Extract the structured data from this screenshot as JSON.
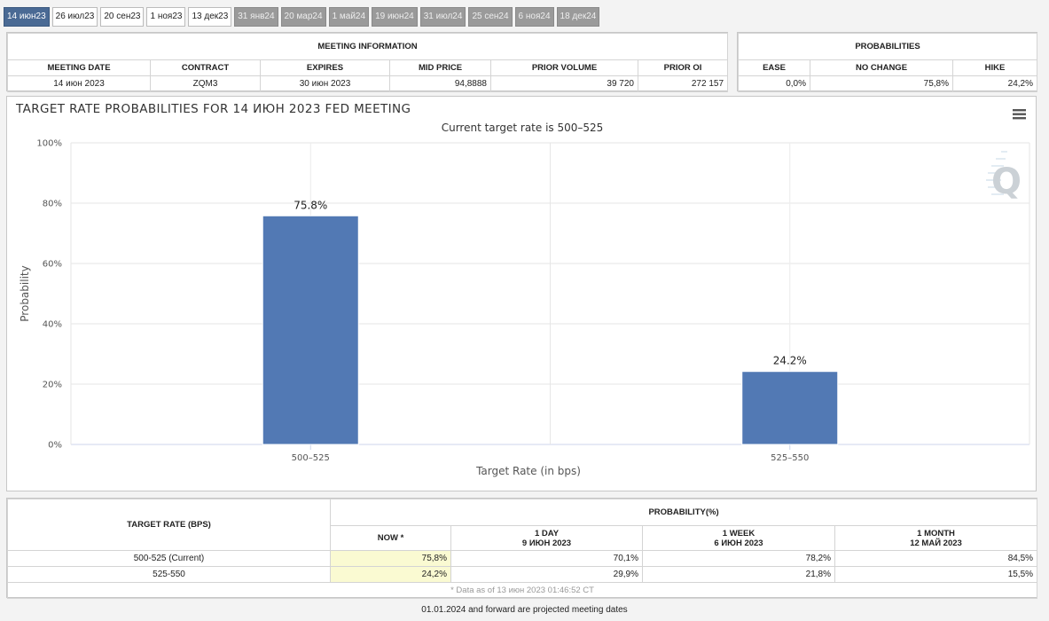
{
  "tabs": [
    {
      "label": "14 июн23",
      "state": "active"
    },
    {
      "label": "26 июл23",
      "state": "enabled"
    },
    {
      "label": "20 сен23",
      "state": "enabled"
    },
    {
      "label": "1 ноя23",
      "state": "enabled"
    },
    {
      "label": "13 дек23",
      "state": "enabled"
    },
    {
      "label": "31 янв24",
      "state": "disabled"
    },
    {
      "label": "20 мар24",
      "state": "disabled"
    },
    {
      "label": "1 май24",
      "state": "disabled"
    },
    {
      "label": "19 июн24",
      "state": "disabled"
    },
    {
      "label": "31 июл24",
      "state": "disabled"
    },
    {
      "label": "25 сен24",
      "state": "disabled"
    },
    {
      "label": "6 ноя24",
      "state": "disabled"
    },
    {
      "label": "18 дек24",
      "state": "disabled"
    }
  ],
  "meeting_info": {
    "title": "MEETING INFORMATION",
    "headers": [
      "MEETING DATE",
      "CONTRACT",
      "EXPIRES",
      "MID PRICE",
      "PRIOR VOLUME",
      "PRIOR OI"
    ],
    "values": [
      "14 июн 2023",
      "ZQM3",
      "30 июн 2023",
      "94,8888",
      "39 720",
      "272 157"
    ]
  },
  "probabilities": {
    "title": "PROBABILITIES",
    "headers": [
      "EASE",
      "NO CHANGE",
      "HIKE"
    ],
    "values": [
      "0,0%",
      "75,8%",
      "24,2%"
    ]
  },
  "chart": {
    "menu_icon": "hamburger-menu-icon",
    "watermark_icon": "cme-q-logo",
    "bar_color": "#5279b4"
  },
  "chart_data": {
    "type": "bar",
    "title": "TARGET RATE PROBABILITIES FOR 14 ИЮН 2023 FED MEETING",
    "subtitle": "Current target rate is 500–525",
    "xlabel": "Target Rate (in bps)",
    "ylabel": "Probability",
    "categories": [
      "500–525",
      "525–550"
    ],
    "values": [
      75.8,
      24.2
    ],
    "data_labels": [
      "75.8%",
      "24.2%"
    ],
    "ylim": [
      0,
      100
    ],
    "yticks": [
      0,
      20,
      40,
      60,
      80,
      100
    ],
    "ytick_labels": [
      "0%",
      "20%",
      "40%",
      "60%",
      "80%",
      "100%"
    ],
    "grid": true,
    "legend": "none"
  },
  "bottom_table": {
    "target_rate_header": "TARGET RATE (BPS)",
    "probability_header": "PROBABILITY(%)",
    "columns": [
      {
        "line1": "NOW *",
        "line2": ""
      },
      {
        "line1": "1 DAY",
        "line2": "9 ИЮН 2023"
      },
      {
        "line1": "1 WEEK",
        "line2": "6 ИЮН 2023"
      },
      {
        "line1": "1 MONTH",
        "line2": "12 МАЙ 2023"
      }
    ],
    "rows": [
      {
        "rate": "500-525 (Current)",
        "values": [
          "75,8%",
          "70,1%",
          "78,2%",
          "84,5%"
        ]
      },
      {
        "rate": "525-550",
        "values": [
          "24,2%",
          "29,9%",
          "21,8%",
          "15,5%"
        ]
      }
    ],
    "footnote": "* Data as of 13 июн 2023 01:46:52 CT"
  },
  "bottom_note": "01.01.2024 and forward are projected meeting dates"
}
